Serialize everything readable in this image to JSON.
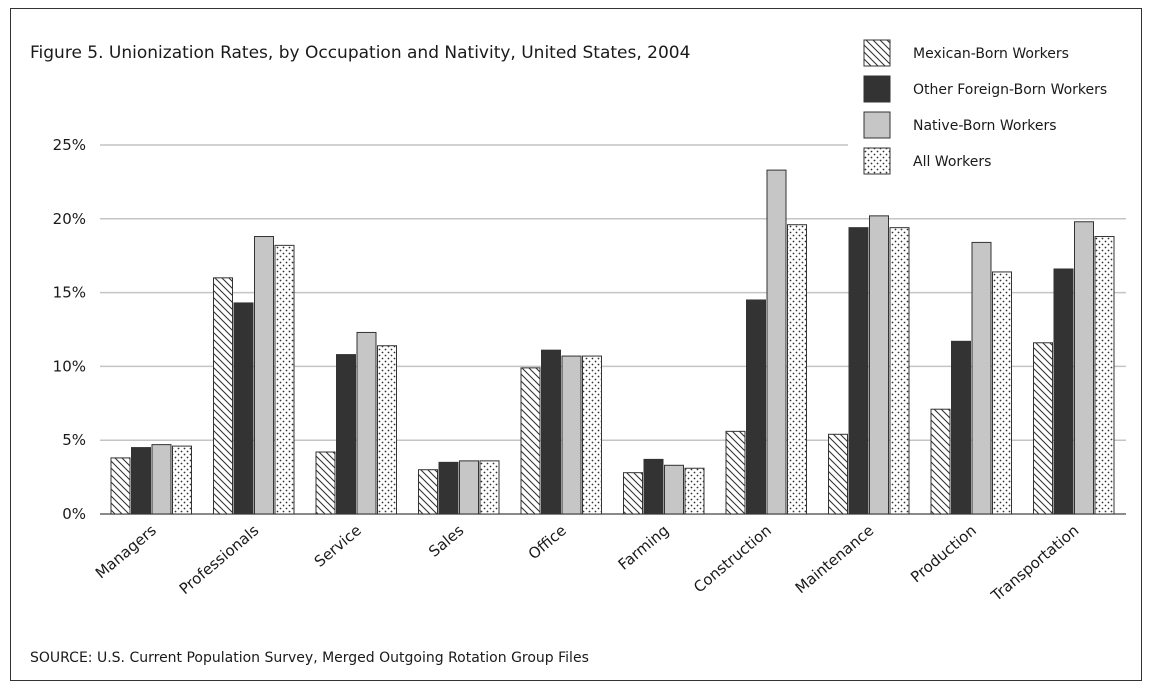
{
  "chart_data": {
    "type": "bar",
    "title": "Figure 5.  Unionization Rates, by Occupation and Nativity, United States, 2004",
    "source": "SOURCE:  U.S. Current Population Survey, Merged Outgoing Rotation Group Files",
    "categories": [
      "Managers",
      "Professionals",
      "Service",
      "Sales",
      "Office",
      "Farming",
      "Construction",
      "Maintenance",
      "Production",
      "Transportation"
    ],
    "series": [
      {
        "name": "Mexican-Born Workers",
        "pattern": "hatch",
        "values": [
          3.8,
          16.0,
          4.2,
          3.0,
          9.9,
          2.8,
          5.6,
          5.4,
          7.1,
          11.6
        ]
      },
      {
        "name": "Other Foreign-Born Workers",
        "pattern": "solid",
        "color": "#333333",
        "values": [
          4.5,
          14.3,
          10.8,
          3.5,
          11.1,
          3.7,
          14.5,
          19.4,
          11.7,
          16.6
        ]
      },
      {
        "name": "Native-Born Workers",
        "pattern": "solid",
        "color": "#c6c6c6",
        "values": [
          4.7,
          18.8,
          12.3,
          3.6,
          10.7,
          3.3,
          23.3,
          20.2,
          18.4,
          19.8
        ]
      },
      {
        "name": "All Workers",
        "pattern": "dots",
        "values": [
          4.6,
          18.2,
          11.4,
          3.6,
          10.7,
          3.1,
          19.6,
          19.4,
          16.4,
          18.8
        ]
      }
    ],
    "ylim": [
      0,
      25
    ],
    "yticks": [
      0,
      5,
      10,
      15,
      20,
      25
    ],
    "ytick_labels": [
      "0%",
      "5%",
      "10%",
      "15%",
      "20%",
      "25%"
    ],
    "grid": true,
    "legend": "top-right",
    "xlabel": "",
    "ylabel": ""
  }
}
